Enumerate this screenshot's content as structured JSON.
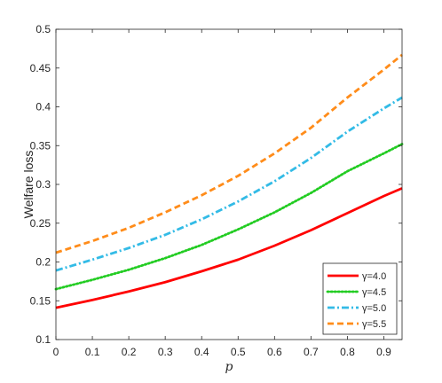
{
  "chart_data": {
    "type": "line",
    "xlabel": "p",
    "ylabel": "Welfare loss",
    "xlim": [
      0,
      0.95
    ],
    "ylim": [
      0.1,
      0.5
    ],
    "xticks": [
      "0",
      "0.1",
      "0.2",
      "0.3",
      "0.4",
      "0.5",
      "0.6",
      "0.7",
      "0.8",
      "0.9"
    ],
    "yticks": [
      "0.1",
      "0.15",
      "0.2",
      "0.25",
      "0.3",
      "0.35",
      "0.4",
      "0.45",
      "0.5"
    ],
    "grid": false,
    "legend_position": "bottom-right",
    "x": [
      0,
      0.1,
      0.2,
      0.3,
      0.4,
      0.5,
      0.6,
      0.7,
      0.8,
      0.9,
      0.95
    ],
    "series": [
      {
        "name": "γ=4.0",
        "color": "#ff0000",
        "dash": "solid",
        "values": [
          0.141,
          0.151,
          0.162,
          0.174,
          0.188,
          0.203,
          0.221,
          0.241,
          0.263,
          0.285,
          0.295
        ]
      },
      {
        "name": "γ=4.5",
        "color": "#22cc22",
        "dash": "dotted",
        "values": [
          0.165,
          0.177,
          0.19,
          0.205,
          0.222,
          0.242,
          0.264,
          0.289,
          0.317,
          0.34,
          0.352
        ]
      },
      {
        "name": "γ=5.0",
        "color": "#33bbe6",
        "dash": "dashdot",
        "values": [
          0.189,
          0.203,
          0.218,
          0.235,
          0.255,
          0.278,
          0.304,
          0.334,
          0.368,
          0.398,
          0.412
        ]
      },
      {
        "name": "γ=5.5",
        "color": "#ff8c1a",
        "dash": "dashed",
        "values": [
          0.212,
          0.227,
          0.244,
          0.264,
          0.286,
          0.311,
          0.34,
          0.373,
          0.412,
          0.448,
          0.467
        ]
      }
    ]
  }
}
